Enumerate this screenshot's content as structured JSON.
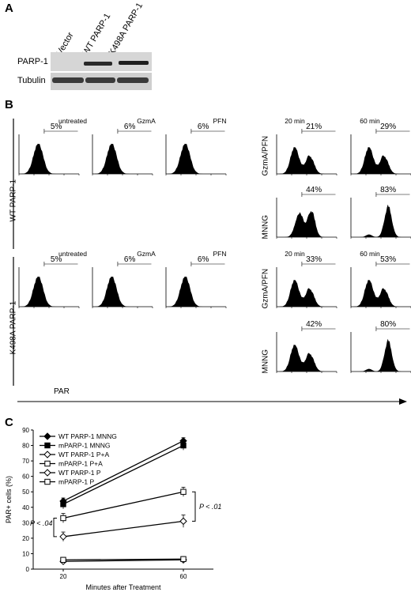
{
  "panelA": {
    "letter": "A",
    "lanes": [
      "Vector",
      "WT PARP-1",
      "K498A PARP-1"
    ],
    "rows": [
      "PARP-1",
      "Tubulin"
    ]
  },
  "panelB": {
    "letter": "B",
    "row_labels": [
      "WT PARP-1",
      "K498A PARP-1"
    ],
    "columns": [
      "untreated",
      "GzmA",
      "PFN",
      "20 min",
      "60 min"
    ],
    "treatments": [
      "GzmA/PFN",
      "MNNG"
    ],
    "axis": "PAR",
    "histograms": {
      "wt": {
        "top": [
          {
            "key": "untreated",
            "pct": "5%",
            "shape": "mono"
          },
          {
            "key": "gzma",
            "pct": "6%",
            "shape": "mono"
          },
          {
            "key": "pfn",
            "pct": "6%",
            "shape": "mono"
          },
          {
            "key": "gp20",
            "pct": "21%",
            "shape": "bi"
          },
          {
            "key": "gp60",
            "pct": "29%",
            "shape": "bi"
          }
        ],
        "mnng": [
          {
            "key": "m20",
            "pct": "44%",
            "shape": "mid"
          },
          {
            "key": "m60",
            "pct": "83%",
            "shape": "right"
          }
        ]
      },
      "k498a": {
        "top": [
          {
            "key": "untreated",
            "pct": "5%",
            "shape": "mono"
          },
          {
            "key": "gzma",
            "pct": "6%",
            "shape": "mono"
          },
          {
            "key": "pfn",
            "pct": "6%",
            "shape": "mono"
          },
          {
            "key": "gp20",
            "pct": "33%",
            "shape": "bi"
          },
          {
            "key": "gp60",
            "pct": "53%",
            "shape": "bi"
          }
        ],
        "mnng": [
          {
            "key": "m20",
            "pct": "42%",
            "shape": "bi"
          },
          {
            "key": "m60",
            "pct": "80%",
            "shape": "right"
          }
        ]
      }
    }
  },
  "panelC": {
    "letter": "C",
    "chart_data": {
      "type": "line",
      "x": [
        20,
        60
      ],
      "xlabel": "Minutes after Treatment",
      "ylabel": "PAR+ cells (%)",
      "ylim": [
        0,
        90
      ],
      "yticks": [
        0,
        10,
        20,
        30,
        40,
        50,
        60,
        70,
        80,
        90
      ],
      "series": [
        {
          "name": "WT PARP-1 MNNG",
          "values": [
            44,
            83
          ],
          "marker": "diamond-filled"
        },
        {
          "name": "mPARP-1 MNNG",
          "values": [
            42,
            80
          ],
          "marker": "square-filled"
        },
        {
          "name": "WT PARP-1 P+A",
          "values": [
            21,
            31
          ],
          "marker": "diamond-open"
        },
        {
          "name": "mPARP-1 P+A",
          "values": [
            33,
            50
          ],
          "marker": "square-open"
        },
        {
          "name": "WT PARP-1 P",
          "values": [
            5,
            6
          ],
          "marker": "diamond-open"
        },
        {
          "name": "mPARP-1 P",
          "values": [
            6,
            6.5
          ],
          "marker": "square-open"
        }
      ],
      "errors": [
        [
          2,
          2
        ],
        [
          3,
          3
        ],
        [
          3,
          4
        ],
        [
          3,
          3
        ],
        [
          1,
          1
        ],
        [
          1,
          1
        ]
      ],
      "annotations": [
        "P < .01",
        "P < .04"
      ]
    }
  }
}
